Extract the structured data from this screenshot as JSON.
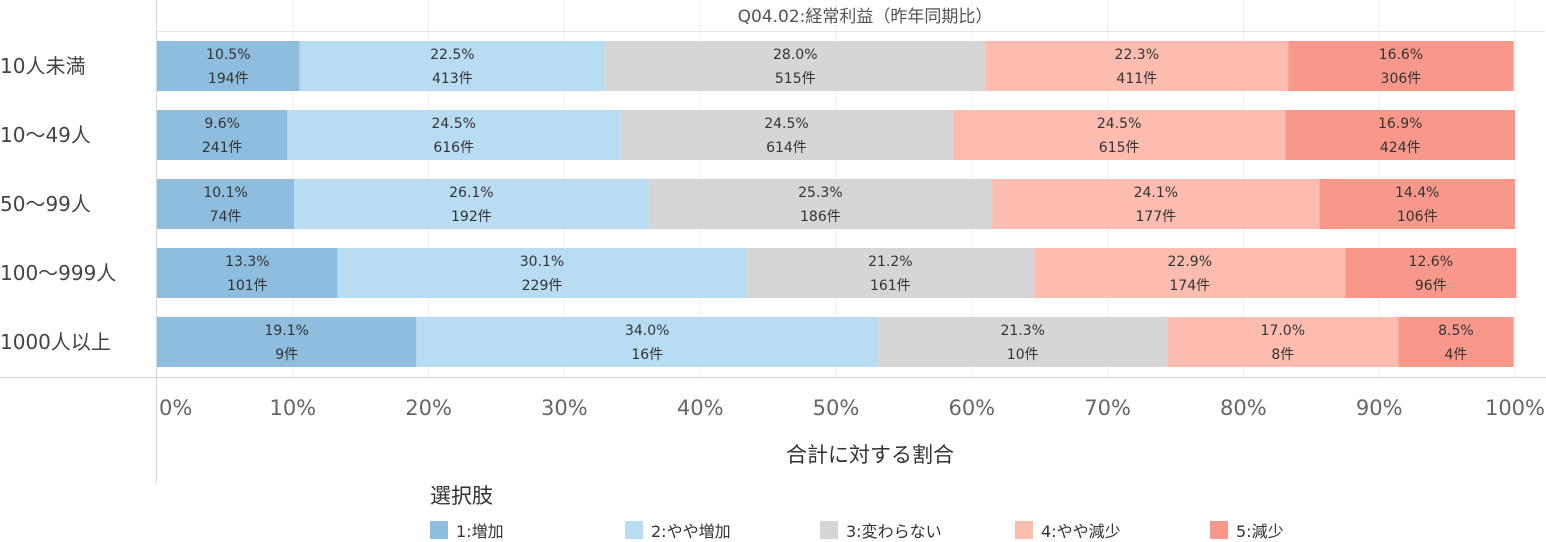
{
  "chart_data": {
    "type": "stacked-bar-horizontal",
    "title": "Q04.02:経常利益（昨年同期比）",
    "xlabel": "合計に対する割合",
    "xlim": [
      0,
      100
    ],
    "x_ticks": [
      "0%",
      "10%",
      "20%",
      "30%",
      "40%",
      "50%",
      "60%",
      "70%",
      "80%",
      "90%",
      "100%"
    ],
    "categories": [
      "10人未満",
      "10〜49人",
      "50〜99人",
      "100〜999人",
      "1000人以上"
    ],
    "series": [
      {
        "name": "1:増加",
        "color": "#8fbddd",
        "pct": [
          10.5,
          9.6,
          10.1,
          13.3,
          19.1
        ],
        "pct_labels": [
          "10.5%",
          "9.6%",
          "10.1%",
          "13.3%",
          "19.1%"
        ],
        "counts": [
          "194件",
          "241件",
          "74件",
          "101件",
          "9件"
        ]
      },
      {
        "name": "2:やや増加",
        "color": "#b8dcf2",
        "pct": [
          22.5,
          24.5,
          26.1,
          30.1,
          34.0
        ],
        "pct_labels": [
          "22.5%",
          "24.5%",
          "26.1%",
          "30.1%",
          "34.0%"
        ],
        "counts": [
          "413件",
          "616件",
          "192件",
          "229件",
          "16件"
        ]
      },
      {
        "name": "3:変わらない",
        "color": "#d6d6d6",
        "pct": [
          28.0,
          24.5,
          25.3,
          21.2,
          21.3
        ],
        "pct_labels": [
          "28.0%",
          "24.5%",
          "25.3%",
          "21.2%",
          "21.3%"
        ],
        "counts": [
          "515件",
          "614件",
          "186件",
          "161件",
          "10件"
        ]
      },
      {
        "name": "4:やや減少",
        "color": "#fdbcb0",
        "pct": [
          22.3,
          24.5,
          24.1,
          22.9,
          17.0
        ],
        "pct_labels": [
          "22.3%",
          "24.5%",
          "24.1%",
          "22.9%",
          "17.0%"
        ],
        "counts": [
          "411件",
          "615件",
          "177件",
          "174件",
          "8件"
        ]
      },
      {
        "name": "5:減少",
        "color": "#f8988a",
        "pct": [
          16.6,
          16.9,
          14.4,
          12.6,
          8.5
        ],
        "pct_labels": [
          "16.6%",
          "16.9%",
          "14.4%",
          "12.6%",
          "8.5%"
        ],
        "counts": [
          "306件",
          "424件",
          "106件",
          "96件",
          "4件"
        ]
      }
    ],
    "legend_title": "選択肢",
    "legend_position": "bottom",
    "grid": true
  }
}
